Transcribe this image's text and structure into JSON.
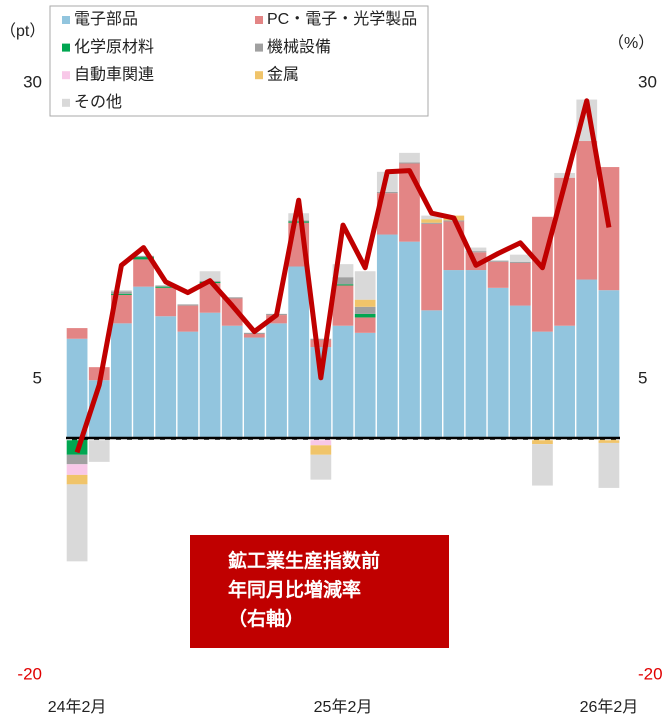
{
  "chart_data": {
    "type": "bar",
    "stacked": true,
    "y_unit": "（pt）",
    "y2_unit": "（%）",
    "categories": [
      "24年2月",
      null,
      null,
      null,
      null,
      null,
      null,
      null,
      null,
      null,
      null,
      null,
      "25年2月",
      null,
      null,
      null,
      null,
      null,
      null,
      null,
      null,
      null,
      null,
      null,
      "26年2月"
    ],
    "ylim": [
      -20,
      30
    ],
    "yticks": [
      -20,
      5,
      30
    ],
    "y2lim": [
      -20,
      30
    ],
    "y2ticks": [
      -20,
      5,
      30
    ],
    "series": [
      {
        "name": "電子部品",
        "color": "#92c5de",
        "values": [
          8.4,
          4.9,
          9.7,
          12.8,
          10.3,
          9.0,
          10.6,
          9.5,
          8.5,
          9.7,
          14.5,
          7.7,
          9.5,
          8.9,
          17.2,
          16.6,
          10.8,
          14.2,
          14.2,
          12.7,
          11.2,
          9.0,
          9.5,
          13.4,
          12.5
        ]
      },
      {
        "name": "PC・電子・光学製品",
        "color": "#e38585",
        "values": [
          0.9,
          1.1,
          2.4,
          2.3,
          2.4,
          2.2,
          2.5,
          2.3,
          0.3,
          0.7,
          3.7,
          0.6,
          3.4,
          1.3,
          3.5,
          6.6,
          7.3,
          4.1,
          1.5,
          2.2,
          3.6,
          9.7,
          12.5,
          11.7,
          10.4
        ]
      },
      {
        "name": "化学原材料",
        "color": "#00a651",
        "values": [
          -1.4,
          0,
          0.1,
          0.2,
          0.1,
          0,
          0.1,
          0,
          0,
          0,
          0.1,
          0,
          0.1,
          0.3,
          0,
          0,
          0,
          0,
          0,
          0,
          0,
          0,
          0,
          0,
          0
        ]
      },
      {
        "name": "機械設備",
        "color": "#a0a0a0",
        "values": [
          -0.8,
          0,
          0.2,
          0.1,
          0.1,
          0.1,
          0.1,
          0.1,
          0.1,
          0.1,
          0.1,
          0.1,
          0.6,
          0.6,
          0.1,
          0.1,
          0.1,
          0.1,
          0.1,
          0.1,
          0.1,
          0,
          0,
          0,
          0
        ]
      },
      {
        "name": "自動車関連",
        "color": "#f8c8e8",
        "values": [
          -0.9,
          -0.1,
          0,
          0,
          0,
          0,
          0,
          0,
          0,
          0,
          0,
          -0.6,
          0,
          0,
          0,
          0,
          0,
          0,
          0,
          0,
          0,
          0,
          0,
          0,
          0
        ]
      },
      {
        "name": "金属",
        "color": "#f0c46a",
        "values": [
          -0.8,
          0,
          0,
          0,
          0,
          0,
          0,
          0,
          0,
          0,
          0,
          -0.8,
          0,
          0.6,
          0,
          0,
          0.3,
          0.4,
          0,
          0,
          0,
          -0.5,
          0,
          0,
          -0.4
        ]
      },
      {
        "name": "その他",
        "color": "#d9d9d9",
        "values": [
          -6.5,
          -1.9,
          0.1,
          0,
          0,
          0,
          0.8,
          0,
          0,
          0,
          0.6,
          -2.1,
          1.1,
          2.4,
          1.7,
          0.8,
          0.3,
          0,
          0.3,
          0,
          0.6,
          -3.5,
          0.4,
          3.5,
          -3.8
        ]
      }
    ],
    "line_series": {
      "color": "#c00000",
      "axis": "y2",
      "values": [
        -1.2,
        4.5,
        14.6,
        16.1,
        13.2,
        12.3,
        13.3,
        11.2,
        9.0,
        10.4,
        20.1,
        5.1,
        18.0,
        14.4,
        22.5,
        22.6,
        19.0,
        18.6,
        14.6,
        15.6,
        16.5,
        14.4,
        21.4,
        28.5,
        17.8
      ]
    },
    "annotation": {
      "lines": [
        "鉱工業生産指数前",
        "年同月比増減率",
        "（右軸）"
      ],
      "color": "#c00000"
    },
    "negative_tick_color": "#e00000"
  }
}
